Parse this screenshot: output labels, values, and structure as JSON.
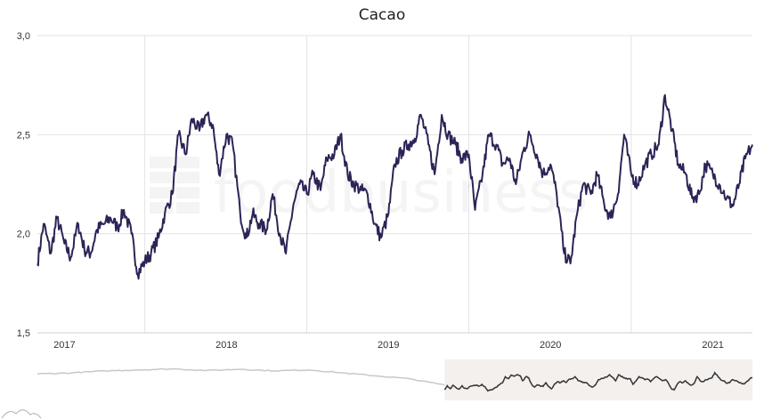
{
  "chart_data": {
    "type": "line",
    "title": "Cacao",
    "xlabel": "",
    "ylabel": "",
    "ylim": [
      1.5,
      3.0
    ],
    "yticks": [
      "1,5",
      "2,0",
      "2,5",
      "3,0"
    ],
    "xticks": [
      "2017",
      "2018",
      "2019",
      "2020",
      "2021"
    ],
    "grid": true,
    "watermark": "foodbusiness",
    "colors": {
      "series": "#2e2356",
      "navigator_line_selected": "#333333",
      "navigator_line_unselected": "#c8c8c8",
      "navigator_band": "#f3f0ee",
      "grid": "#e3e3e3"
    },
    "series": [
      {
        "values_x": [
          "2016-11-01",
          "2016-11-15",
          "2016-12-01",
          "2016-12-15",
          "2017-01-01",
          "2017-01-15",
          "2017-02-01",
          "2017-02-15",
          "2017-03-01",
          "2017-03-15",
          "2017-04-01",
          "2017-04-15",
          "2017-05-01",
          "2017-05-15",
          "2017-06-01",
          "2017-06-15",
          "2017-07-01",
          "2017-07-15",
          "2017-08-01",
          "2017-08-15",
          "2017-09-01",
          "2017-09-15",
          "2017-10-01",
          "2017-10-15",
          "2017-11-01",
          "2017-11-15",
          "2017-12-01",
          "2017-12-15",
          "2018-01-01",
          "2018-01-15",
          "2018-02-01",
          "2018-02-15",
          "2018-03-01",
          "2018-03-15",
          "2018-04-01",
          "2018-04-15",
          "2018-05-01",
          "2018-05-15",
          "2018-06-01",
          "2018-06-15",
          "2018-07-01",
          "2018-07-15",
          "2018-08-01",
          "2018-08-15",
          "2018-09-01",
          "2018-09-15",
          "2018-10-01",
          "2018-10-15",
          "2018-11-01",
          "2018-11-15",
          "2018-12-01",
          "2018-12-15",
          "2019-01-01",
          "2019-01-15",
          "2019-02-01",
          "2019-02-15",
          "2019-03-01",
          "2019-03-15",
          "2019-04-01",
          "2019-04-15",
          "2019-05-01",
          "2019-05-15",
          "2019-06-01",
          "2019-06-15",
          "2019-07-01",
          "2019-07-15",
          "2019-08-01",
          "2019-08-15",
          "2019-09-01",
          "2019-09-15",
          "2019-10-01",
          "2019-10-15",
          "2019-11-01",
          "2019-11-15",
          "2019-12-01",
          "2019-12-15",
          "2020-01-01",
          "2020-01-15",
          "2020-02-01",
          "2020-02-15",
          "2020-03-01",
          "2020-03-15",
          "2020-04-01",
          "2020-04-15",
          "2020-05-01",
          "2020-05-15",
          "2020-06-01",
          "2020-06-15",
          "2020-07-01",
          "2020-07-15",
          "2020-08-01",
          "2020-08-15",
          "2020-09-01",
          "2020-09-15",
          "2020-10-01",
          "2020-10-15",
          "2020-11-01",
          "2020-11-15",
          "2020-12-01",
          "2020-12-15",
          "2021-01-01",
          "2021-01-15",
          "2021-02-01",
          "2021-02-15",
          "2021-03-01",
          "2021-03-15",
          "2021-03-31"
        ],
        "values": [
          1.85,
          2.05,
          1.9,
          2.08,
          1.95,
          1.88,
          2.05,
          1.92,
          1.9,
          2.02,
          2.05,
          2.08,
          2.03,
          2.12,
          2.0,
          1.8,
          1.86,
          1.9,
          1.98,
          2.1,
          2.2,
          2.5,
          2.4,
          2.58,
          2.52,
          2.6,
          2.55,
          2.3,
          2.5,
          2.45,
          2.1,
          1.98,
          2.1,
          2.05,
          2.02,
          2.2,
          2.0,
          1.9,
          2.15,
          2.25,
          2.2,
          2.3,
          2.22,
          2.38,
          2.4,
          2.5,
          2.3,
          2.25,
          2.22,
          2.2,
          2.05,
          1.98,
          2.1,
          2.35,
          2.42,
          2.45,
          2.48,
          2.6,
          2.45,
          2.3,
          2.6,
          2.5,
          2.45,
          2.38,
          2.4,
          2.12,
          2.3,
          2.5,
          2.45,
          2.35,
          2.38,
          2.25,
          2.42,
          2.5,
          2.4,
          2.3,
          2.35,
          2.2,
          1.9,
          1.85,
          2.1,
          2.25,
          2.2,
          2.3,
          2.15,
          2.08,
          2.2,
          2.5,
          2.3,
          2.25,
          2.35,
          2.4,
          2.45,
          2.7,
          2.52,
          2.35,
          2.3,
          2.18,
          2.2,
          2.35,
          2.3,
          2.25,
          2.18,
          2.14,
          2.25,
          2.38,
          2.45
        ]
      }
    ],
    "navigator": {
      "selected_from": "2016-11-01",
      "range_from": "2011-01-01",
      "range_to": "2021-03-31"
    }
  }
}
